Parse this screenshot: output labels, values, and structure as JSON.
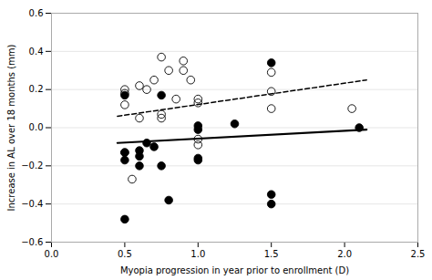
{
  "chart_data": {
    "type": "scatter",
    "xlabel": "Myopia progression in year prior to enrollment (D)",
    "ylabel": "Increase in AL over 18 months (mm)",
    "series": [
      {
        "type": "scatter",
        "marker": "open",
        "color": "#000000",
        "x": [
          0.5,
          0.5,
          0.5,
          0.5,
          0.55,
          0.6,
          0.6,
          0.65,
          0.7,
          0.75,
          0.75,
          0.75,
          0.8,
          0.85,
          0.9,
          0.9,
          0.95,
          1.0,
          1.0,
          1.0,
          1.0,
          1.5,
          1.5,
          1.5,
          2.05
        ],
        "values": [
          0.2,
          0.18,
          0.12,
          -0.13,
          -0.27,
          0.22,
          0.05,
          0.2,
          0.25,
          0.37,
          0.07,
          0.05,
          0.3,
          0.15,
          0.35,
          0.3,
          0.25,
          0.15,
          0.13,
          -0.06,
          -0.09,
          0.29,
          0.19,
          0.1,
          0.1
        ]
      },
      {
        "type": "scatter",
        "marker": "filled",
        "color": "#000000",
        "x": [
          0.5,
          0.5,
          0.5,
          0.5,
          0.6,
          0.6,
          0.6,
          0.65,
          0.7,
          0.75,
          0.75,
          0.8,
          1.0,
          1.0,
          1.0,
          1.0,
          1.25,
          1.5,
          1.5,
          1.5,
          2.1
        ],
        "values": [
          0.17,
          -0.13,
          -0.17,
          -0.48,
          -0.12,
          -0.15,
          -0.2,
          -0.08,
          -0.1,
          0.17,
          -0.2,
          -0.38,
          0.01,
          -0.01,
          -0.16,
          -0.17,
          0.02,
          0.34,
          -0.35,
          -0.4,
          0.0
        ]
      },
      {
        "type": "line",
        "line_style": "dashed",
        "color": "#000000",
        "x": [
          0.45,
          2.15
        ],
        "values": [
          0.06,
          0.25
        ]
      },
      {
        "type": "line",
        "line_style": "solid",
        "color": "#000000",
        "x": [
          0.45,
          2.15
        ],
        "values": [
          -0.08,
          -0.01
        ]
      }
    ],
    "xlim": [
      0,
      2.5
    ],
    "ylim": [
      -0.6,
      0.6
    ],
    "xticks": [
      {
        "value": 0,
        "label": "0.0"
      },
      0.5,
      {
        "value": 1.0,
        "label": "1.0"
      },
      1.5,
      {
        "value": 2.0,
        "label": "2.0"
      },
      2.5
    ],
    "yticks": [
      -0.6,
      -0.4,
      -0.2,
      {
        "value": 0.0,
        "label": "0.0"
      },
      0.2,
      0.4,
      0.6
    ],
    "grid": "y"
  }
}
